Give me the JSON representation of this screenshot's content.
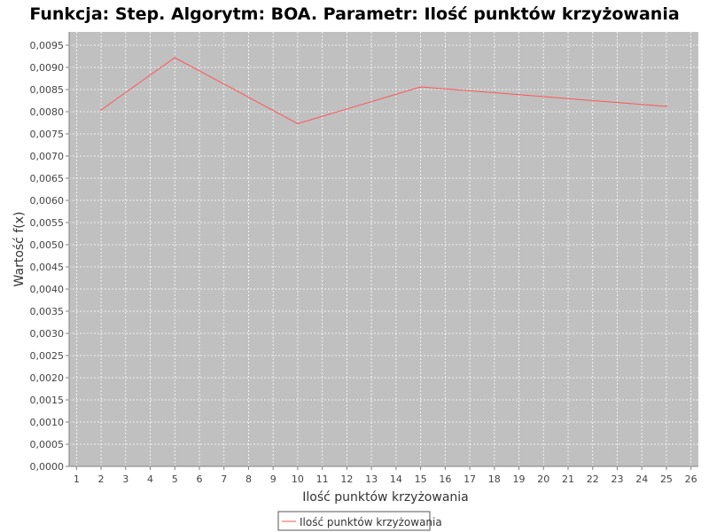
{
  "chart_data": {
    "type": "line",
    "title": "Funkcja: Step. Algorytm: BOA. Parametr: Ilość punktów krzyżowania",
    "xlabel": "Ilość punktów krzyżowania",
    "ylabel": "Wartość f(x)",
    "xlim": [
      0.7,
      26.3
    ],
    "ylim": [
      0,
      0.0098
    ],
    "x_ticks": [
      1,
      2,
      3,
      4,
      5,
      6,
      7,
      8,
      9,
      10,
      11,
      12,
      13,
      14,
      15,
      16,
      17,
      18,
      19,
      20,
      21,
      22,
      23,
      24,
      25,
      26
    ],
    "y_ticks": [
      0,
      0.0005,
      0.001,
      0.0015,
      0.002,
      0.0025,
      0.003,
      0.0035,
      0.004,
      0.0045,
      0.005,
      0.0055,
      0.006,
      0.0065,
      0.007,
      0.0075,
      0.008,
      0.0085,
      0.009,
      0.0095
    ],
    "y_tick_labels": [
      "0,0000",
      "0,0005",
      "0,0010",
      "0,0015",
      "0,0020",
      "0,0025",
      "0,0030",
      "0,0035",
      "0,0040",
      "0,0045",
      "0,0050",
      "0,0055",
      "0,0060",
      "0,0065",
      "0,0070",
      "0,0075",
      "0,0080",
      "0,0085",
      "0,0090",
      "0,0095"
    ],
    "grid": true,
    "legend_position": "bottom-center",
    "series": [
      {
        "name": "Ilość punktów krzyżowania",
        "color": "#ff5555",
        "x": [
          2,
          5,
          10,
          15,
          25
        ],
        "y": [
          0.00804,
          0.00922,
          0.00773,
          0.00856,
          0.00812
        ]
      }
    ]
  },
  "colors": {
    "plot_background": "#c0c0c0",
    "grid": "#ffffff",
    "axis": "#808080"
  }
}
